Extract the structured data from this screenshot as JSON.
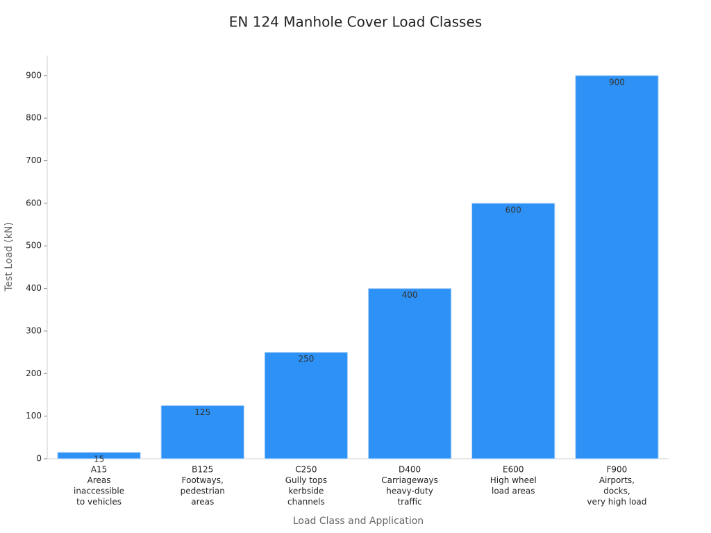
{
  "chart_data": {
    "type": "bar",
    "title": "EN 124 Manhole Cover Load Classes",
    "x_label": "Load Class and Application",
    "y_label": "Test Load (kN)",
    "categories": [
      [
        "A15",
        "Areas",
        "inaccessible",
        "to vehicles"
      ],
      [
        "B125",
        "Footways,",
        "pedestrian",
        "areas"
      ],
      [
        "C250",
        "Gully tops",
        "kerbside",
        "channels"
      ],
      [
        "D400",
        "Carriageways",
        "heavy-duty",
        "traffic"
      ],
      [
        "E600",
        "High wheel",
        "load areas"
      ],
      [
        "F900",
        "Airports,",
        "docks,",
        "very high load"
      ]
    ],
    "values": [
      15,
      125,
      250,
      400,
      600,
      900
    ],
    "color": "#2d91f5",
    "ylim": [
      0,
      947
    ],
    "yticks": [
      0,
      100,
      200,
      300,
      400,
      500,
      600,
      700,
      800,
      900
    ],
    "grid": false
  }
}
